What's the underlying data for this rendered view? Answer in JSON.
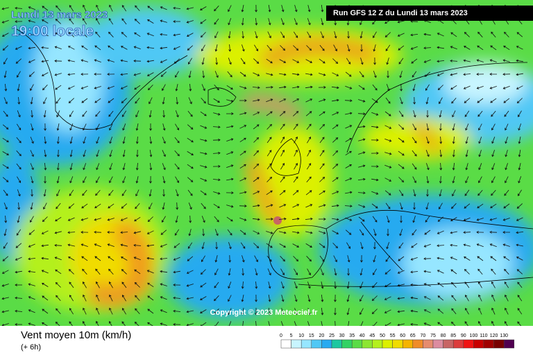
{
  "header": {
    "date": "Lundi 13 mars 2023",
    "time": "19:00 locale",
    "run": "Run GFS 12 Z du Lundi 13 mars 2023"
  },
  "copyright": "Copyright © 2023 Meteociel.fr",
  "footer": {
    "title": "Vent moyen 10m (km/h)",
    "subtitle": "(+ 6h)"
  },
  "legend": [
    {
      "label": "0",
      "color": "#ffffff"
    },
    {
      "label": "5",
      "color": "#c8f5ff"
    },
    {
      "label": "10",
      "color": "#96e6ff"
    },
    {
      "label": "15",
      "color": "#50c8f5"
    },
    {
      "label": "20",
      "color": "#28aaf0"
    },
    {
      "label": "25",
      "color": "#1ec8a0"
    },
    {
      "label": "30",
      "color": "#32d264"
    },
    {
      "label": "35",
      "color": "#5adc46"
    },
    {
      "label": "40",
      "color": "#8ce632"
    },
    {
      "label": "45",
      "color": "#b4f01e"
    },
    {
      "label": "50",
      "color": "#dcf000"
    },
    {
      "label": "55",
      "color": "#f0dc00"
    },
    {
      "label": "60",
      "color": "#f5b400"
    },
    {
      "label": "65",
      "color": "#f08c28"
    },
    {
      "label": "70",
      "color": "#e68c6e"
    },
    {
      "label": "75",
      "color": "#dc8ca0"
    },
    {
      "label": "80",
      "color": "#c86464"
    },
    {
      "label": "85",
      "color": "#dc3c3c"
    },
    {
      "label": "90",
      "color": "#f01414"
    },
    {
      "label": "100",
      "color": "#c80000"
    },
    {
      "label": "110",
      "color": "#a00000"
    },
    {
      "label": "120",
      "color": "#780000"
    },
    {
      "label": "130",
      "color": "#500050"
    }
  ]
}
